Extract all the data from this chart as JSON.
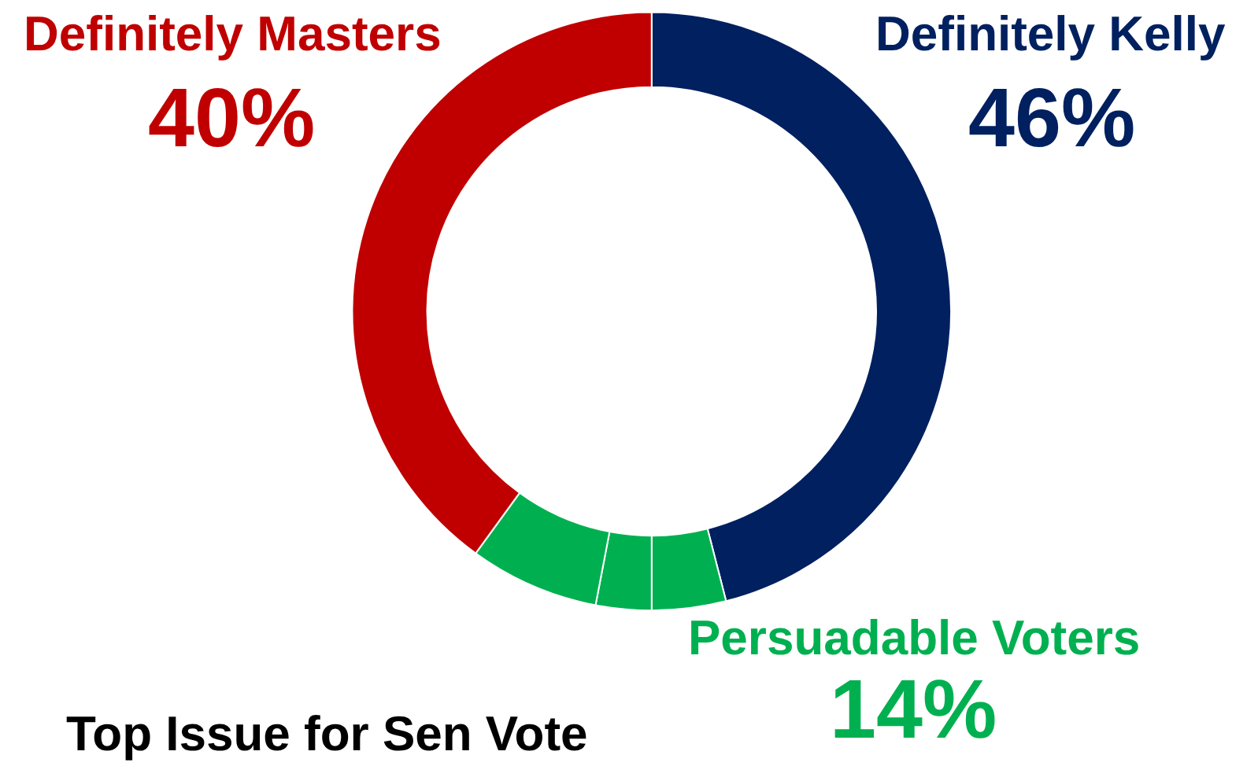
{
  "chart_data": {
    "type": "donut",
    "categories": [
      "Definitely Kelly",
      null,
      null,
      null,
      "Definitely Masters"
    ],
    "values": [
      46,
      4,
      3,
      7,
      40
    ],
    "colors": [
      "#002060",
      "#00b050",
      "#00b050",
      "#00b050",
      "#c00000"
    ],
    "value_labels": [
      "46%",
      null,
      null,
      null,
      "40%"
    ],
    "annotations": [
      "Persuadable Voters",
      "14%",
      "Top Issue for Sen Vote"
    ],
    "legend": false
  }
}
